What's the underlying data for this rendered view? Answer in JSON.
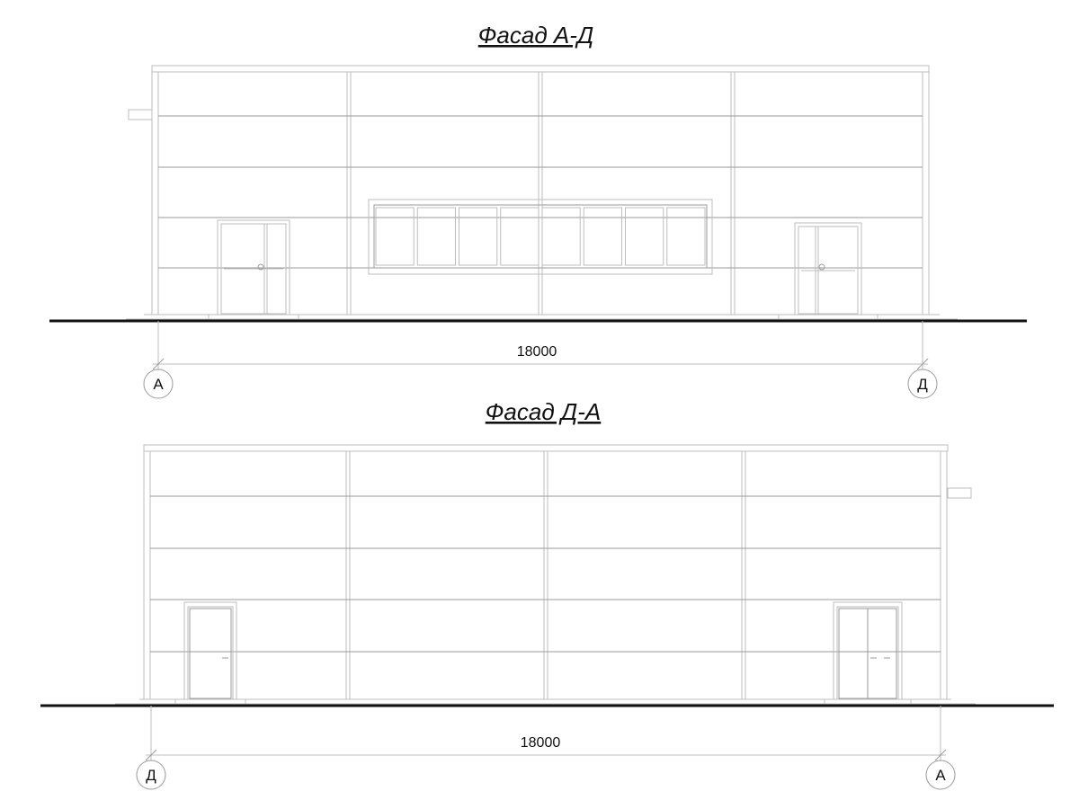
{
  "facades": [
    {
      "title": "Фасад А-Д",
      "dimension": "18000",
      "axis_left": "А",
      "axis_right": "Д"
    },
    {
      "title": "Фасад Д-А",
      "dimension": "18000",
      "axis_left": "Д",
      "axis_right": "А"
    }
  ]
}
